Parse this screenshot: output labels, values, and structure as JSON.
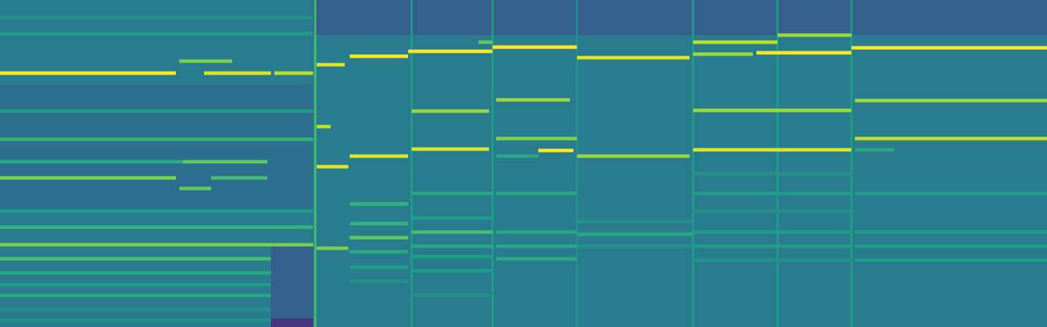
{
  "chart_data": {
    "type": "spectrogram",
    "tick_labels": false,
    "xlim": [
      0,
      1488
    ],
    "ylim": [
      0,
      465
    ],
    "zlim": [
      0,
      1
    ],
    "background": 0.42,
    "regions": [
      {
        "x": [
          445,
          1488
        ],
        "y": [
          415,
          465
        ],
        "value": 0.3
      },
      {
        "x": [
          0,
          445
        ],
        "y": [
          165,
          345
        ],
        "value": 0.36
      },
      {
        "x": [
          385,
          445
        ],
        "y": [
          0,
          120
        ],
        "value": 0.3
      },
      {
        "x": [
          385,
          445
        ],
        "y": [
          0,
          12
        ],
        "value": 0.15
      }
    ],
    "onsets": [
      {
        "x": 448,
        "value": 0.7
      },
      {
        "x": 585,
        "value": 0.55
      },
      {
        "x": 700,
        "value": 0.55
      },
      {
        "x": 820,
        "value": 0.5
      },
      {
        "x": 985,
        "value": 0.55
      },
      {
        "x": 1105,
        "value": 0.55
      },
      {
        "x": 1210,
        "value": 0.55
      }
    ],
    "tracks": [
      {
        "x": [
          0,
          250
        ],
        "y": 361,
        "value": 1.0
      },
      {
        "x": [
          290,
          385
        ],
        "y": 361,
        "value": 0.95
      },
      {
        "x": [
          390,
          445
        ],
        "y": 361,
        "value": 0.9
      },
      {
        "x": [
          255,
          330
        ],
        "y": 378,
        "value": 0.8
      },
      {
        "x": [
          0,
          445
        ],
        "y": 417,
        "value": 0.55
      },
      {
        "x": [
          0,
          445
        ],
        "y": 440,
        "value": 0.5
      },
      {
        "x": [
          0,
          445
        ],
        "y": 307,
        "value": 0.55
      },
      {
        "x": [
          0,
          445
        ],
        "y": 267,
        "value": 0.65
      },
      {
        "x": [
          0,
          260
        ],
        "y": 235,
        "value": 0.6
      },
      {
        "x": [
          260,
          380
        ],
        "y": 235,
        "value": 0.75
      },
      {
        "x": [
          0,
          250
        ],
        "y": 212,
        "value": 0.8
      },
      {
        "x": [
          255,
          300
        ],
        "y": 197,
        "value": 0.75
      },
      {
        "x": [
          300,
          380
        ],
        "y": 212,
        "value": 0.7
      },
      {
        "x": [
          0,
          445
        ],
        "y": 165,
        "value": 0.55
      },
      {
        "x": [
          0,
          445
        ],
        "y": 142,
        "value": 0.65
      },
      {
        "x": [
          0,
          445
        ],
        "y": 117,
        "value": 0.8
      },
      {
        "x": [
          0,
          385
        ],
        "y": 97,
        "value": 0.7
      },
      {
        "x": [
          0,
          385
        ],
        "y": 77,
        "value": 0.6
      },
      {
        "x": [
          0,
          385
        ],
        "y": 60,
        "value": 0.55
      },
      {
        "x": [
          0,
          385
        ],
        "y": 45,
        "value": 0.6
      },
      {
        "x": [
          0,
          385
        ],
        "y": 25,
        "value": 0.5
      },
      {
        "x": [
          0,
          385
        ],
        "y": 10,
        "value": 0.5
      },
      {
        "x": [
          450,
          490
        ],
        "y": 373,
        "value": 0.95
      },
      {
        "x": [
          450,
          470
        ],
        "y": 285,
        "value": 0.9
      },
      {
        "x": [
          450,
          495
        ],
        "y": 228,
        "value": 0.95
      },
      {
        "x": [
          450,
          495
        ],
        "y": 112,
        "value": 0.8
      },
      {
        "x": [
          497,
          580
        ],
        "y": 385,
        "value": 1.0
      },
      {
        "x": [
          497,
          580
        ],
        "y": 243,
        "value": 0.95
      },
      {
        "x": [
          497,
          580
        ],
        "y": 175,
        "value": 0.65
      },
      {
        "x": [
          497,
          580
        ],
        "y": 147,
        "value": 0.65
      },
      {
        "x": [
          497,
          580
        ],
        "y": 127,
        "value": 0.75
      },
      {
        "x": [
          497,
          580
        ],
        "y": 107,
        "value": 0.6
      },
      {
        "x": [
          497,
          580
        ],
        "y": 85,
        "value": 0.55
      },
      {
        "x": [
          497,
          580
        ],
        "y": 65,
        "value": 0.5
      },
      {
        "x": [
          580,
          700
        ],
        "y": 392,
        "value": 1.0
      },
      {
        "x": [
          585,
          695
        ],
        "y": 307,
        "value": 0.85
      },
      {
        "x": [
          585,
          695
        ],
        "y": 253,
        "value": 0.95
      },
      {
        "x": [
          680,
          700
        ],
        "y": 405,
        "value": 0.75
      },
      {
        "x": [
          585,
          700
        ],
        "y": 190,
        "value": 0.6
      },
      {
        "x": [
          585,
          700
        ],
        "y": 155,
        "value": 0.55
      },
      {
        "x": [
          585,
          700
        ],
        "y": 135,
        "value": 0.7
      },
      {
        "x": [
          585,
          700
        ],
        "y": 115,
        "value": 0.6
      },
      {
        "x": [
          585,
          700
        ],
        "y": 100,
        "value": 0.55
      },
      {
        "x": [
          585,
          700
        ],
        "y": 80,
        "value": 0.55
      },
      {
        "x": [
          585,
          700
        ],
        "y": 45,
        "value": 0.5
      },
      {
        "x": [
          700,
          820
        ],
        "y": 398,
        "value": 1.0
      },
      {
        "x": [
          705,
          810
        ],
        "y": 323,
        "value": 0.85
      },
      {
        "x": [
          705,
          820
        ],
        "y": 268,
        "value": 0.8
      },
      {
        "x": [
          765,
          815
        ],
        "y": 251,
        "value": 1.0
      },
      {
        "x": [
          705,
          765
        ],
        "y": 243,
        "value": 0.6
      },
      {
        "x": [
          705,
          820
        ],
        "y": 190,
        "value": 0.6
      },
      {
        "x": [
          705,
          820
        ],
        "y": 135,
        "value": 0.6
      },
      {
        "x": [
          705,
          820
        ],
        "y": 115,
        "value": 0.6
      },
      {
        "x": [
          705,
          820
        ],
        "y": 97,
        "value": 0.6
      },
      {
        "x": [
          820,
          980
        ],
        "y": 383,
        "value": 0.95
      },
      {
        "x": [
          820,
          980
        ],
        "y": 243,
        "value": 0.85
      },
      {
        "x": [
          820,
          985
        ],
        "y": 150,
        "value": 0.5
      },
      {
        "x": [
          820,
          985
        ],
        "y": 132,
        "value": 0.6
      },
      {
        "x": [
          820,
          985
        ],
        "y": 115,
        "value": 0.5
      },
      {
        "x": [
          985,
          1105
        ],
        "y": 405,
        "value": 0.9
      },
      {
        "x": [
          985,
          1070
        ],
        "y": 388,
        "value": 0.85
      },
      {
        "x": [
          1075,
          1210
        ],
        "y": 390,
        "value": 1.0
      },
      {
        "x": [
          985,
          1210
        ],
        "y": 308,
        "value": 0.85
      },
      {
        "x": [
          985,
          1210
        ],
        "y": 252,
        "value": 0.95
      },
      {
        "x": [
          985,
          1210
        ],
        "y": 218,
        "value": 0.5
      },
      {
        "x": [
          985,
          1210
        ],
        "y": 190,
        "value": 0.55
      },
      {
        "x": [
          985,
          1210
        ],
        "y": 165,
        "value": 0.5
      },
      {
        "x": [
          985,
          1210
        ],
        "y": 135,
        "value": 0.55
      },
      {
        "x": [
          985,
          1210
        ],
        "y": 115,
        "value": 0.55
      },
      {
        "x": [
          985,
          1210
        ],
        "y": 95,
        "value": 0.5
      },
      {
        "x": [
          1105,
          1210
        ],
        "y": 415,
        "value": 0.85
      },
      {
        "x": [
          1210,
          1488
        ],
        "y": 397,
        "value": 1.0
      },
      {
        "x": [
          1215,
          1488
        ],
        "y": 322,
        "value": 0.85
      },
      {
        "x": [
          1215,
          1488
        ],
        "y": 268,
        "value": 0.9
      },
      {
        "x": [
          1215,
          1270
        ],
        "y": 252,
        "value": 0.6
      },
      {
        "x": [
          1215,
          1488
        ],
        "y": 190,
        "value": 0.55
      },
      {
        "x": [
          1215,
          1488
        ],
        "y": 135,
        "value": 0.55
      },
      {
        "x": [
          1215,
          1488
        ],
        "y": 115,
        "value": 0.55
      },
      {
        "x": [
          1215,
          1488
        ],
        "y": 95,
        "value": 0.55
      }
    ]
  }
}
